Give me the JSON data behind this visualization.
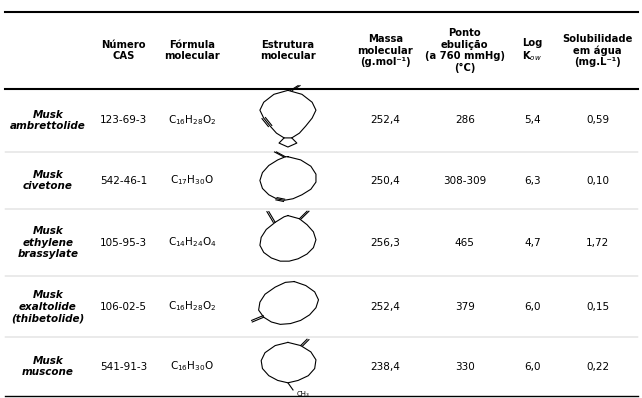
{
  "rows": [
    {
      "name": "Musk\nambrettolide",
      "cas": "123-69-3",
      "formula_disp": "C$_{16}$H$_{28}$O$_{2}$",
      "mass": "252,4",
      "boiling": "286",
      "logkow": "5,4",
      "solubility": "0,59"
    },
    {
      "name": "Musk\ncivetone",
      "cas": "542-46-1",
      "formula_disp": "C$_{17}$H$_{30}$O",
      "mass": "250,4",
      "boiling": "308-309",
      "logkow": "6,3",
      "solubility": "0,10"
    },
    {
      "name": "Musk\nethylene\nbrassylate",
      "cas": "105-95-3",
      "formula_disp": "C$_{14}$H$_{24}$O$_{4}$",
      "mass": "256,3",
      "boiling": "465",
      "logkow": "4,7",
      "solubility": "1,72"
    },
    {
      "name": "Musk\nexaltolide\n(thibetolide)",
      "cas": "106-02-5",
      "formula_disp": "C$_{16}$H$_{28}$O$_{2}$",
      "mass": "252,4",
      "boiling": "379",
      "logkow": "6,0",
      "solubility": "0,15"
    },
    {
      "name": "Musk\nmuscone",
      "cas": "541-91-3",
      "formula_disp": "C$_{16}$H$_{30}$O",
      "mass": "238,4",
      "boiling": "330",
      "logkow": "6,0",
      "solubility": "0,22"
    }
  ]
}
